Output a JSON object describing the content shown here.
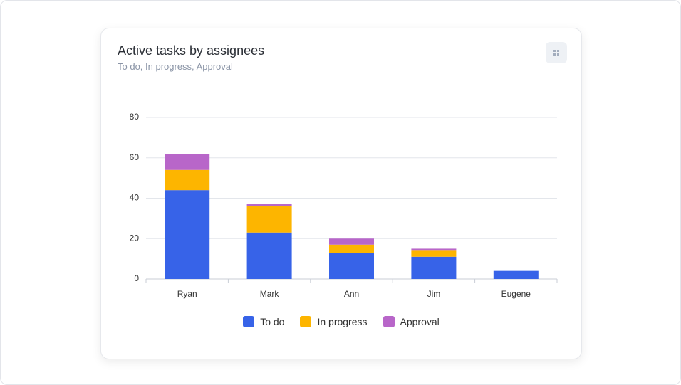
{
  "chart_data": {
    "type": "bar",
    "stacked": true,
    "title": "Active tasks by assignees",
    "subtitle": "To do, In progress, Approval",
    "categories": [
      "Ryan",
      "Mark",
      "Ann",
      "Jim",
      "Eugene"
    ],
    "series": [
      {
        "name": "To do",
        "color": "#3763e8",
        "values": [
          44,
          23,
          13,
          11,
          4
        ]
      },
      {
        "name": "In progress",
        "color": "#fdb500",
        "values": [
          10,
          13,
          4,
          3,
          0
        ]
      },
      {
        "name": "Approval",
        "color": "#b866c9",
        "values": [
          8,
          1,
          3,
          1,
          0
        ]
      }
    ],
    "ylim": [
      0,
      80
    ],
    "yticks": [
      0,
      20,
      40,
      60,
      80
    ],
    "grid": true,
    "legend": "bottom"
  }
}
